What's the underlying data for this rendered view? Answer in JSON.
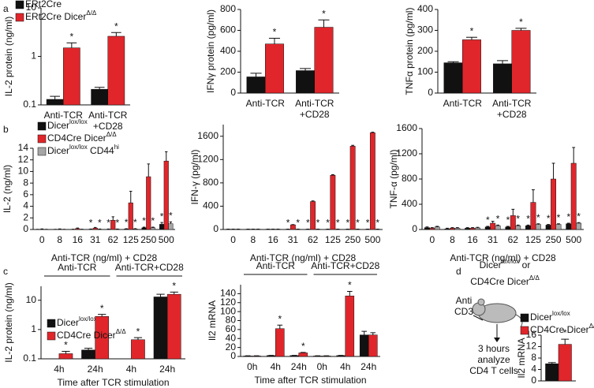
{
  "panels": [
    "a",
    "b",
    "c",
    "d"
  ],
  "diagram": {
    "title": [
      [
        "Dicer",
        "lox/lox",
        " or"
      ],
      [
        "CD4Cre Dicer",
        "Δ/Δ"
      ]
    ],
    "stimulus": [
      "Anti",
      "CD3"
    ],
    "readout": [
      "3 hours",
      "analyze",
      "CD4 T cells"
    ]
  },
  "chart_data": [
    {
      "type": "bar",
      "ylabel": "IL-2 protein (ng/ml)",
      "log": true,
      "ylim": [
        0.1,
        10
      ],
      "yticks": [
        0.1,
        1,
        10
      ],
      "categories": [
        [
          "Anti-TCR"
        ],
        [
          "Anti-TCR",
          "+CD28"
        ]
      ],
      "series": [
        {
          "name": [
            "ERt2Cre"
          ],
          "color": "#111111",
          "values": [
            0.13,
            0.21
          ],
          "errors": [
            0.02,
            0.02
          ]
        },
        {
          "name": [
            "ERt2Cre Dicer",
            "Δ/Δ"
          ],
          "color": "#e0262b",
          "values": [
            1.5,
            2.6
          ],
          "errors": [
            0.4,
            0.5
          ],
          "annotations": [
            "*",
            "*"
          ]
        }
      ]
    },
    {
      "type": "bar",
      "ylabel": "IFNγ protein (pg/ml)",
      "ylim": [
        0,
        800
      ],
      "yticks": [
        0,
        200,
        400,
        600,
        800
      ],
      "categories": [
        [
          "Anti-TCR"
        ],
        [
          "Anti-TCR",
          "+CD28"
        ]
      ],
      "series": [
        {
          "color": "#111111",
          "values": [
            155,
            215
          ],
          "errors": [
            35,
            20
          ]
        },
        {
          "color": "#e0262b",
          "values": [
            470,
            630
          ],
          "errors": [
            55,
            70
          ],
          "annotations": [
            "*",
            "*"
          ]
        }
      ]
    },
    {
      "type": "bar",
      "ylabel": "TNFα protein (pg/ml)",
      "ylim": [
        0,
        400
      ],
      "yticks": [
        0,
        100,
        200,
        300,
        400
      ],
      "categories": [
        [
          "Anti-TCR"
        ],
        [
          "Anti-TCR",
          "+CD28"
        ]
      ],
      "series": [
        {
          "color": "#111111",
          "values": [
            145,
            140
          ],
          "errors": [
            5,
            15
          ]
        },
        {
          "color": "#e0262b",
          "values": [
            255,
            300
          ],
          "errors": [
            12,
            10
          ],
          "annotations": [
            "*",
            "*"
          ]
        }
      ]
    },
    {
      "type": "bar",
      "ylabel": "IL-2 (ng/ml)",
      "xlabel": "Anti-TCR (ng/ml) + CD28",
      "ylim": [
        0,
        14
      ],
      "yticks": [
        0,
        2,
        4,
        6,
        8,
        10,
        12,
        14
      ],
      "categories": [
        "0",
        "8",
        "16",
        "31",
        "62",
        "125",
        "250",
        "500"
      ],
      "series": [
        {
          "name": [
            "Dicer",
            "lox/lox"
          ],
          "color": "#111111",
          "values": [
            0.02,
            0.02,
            0.03,
            0.05,
            0.05,
            0.08,
            0.3,
            0.9
          ],
          "errors": [
            0.02,
            0.02,
            0.02,
            0.03,
            0.03,
            0.05,
            0.1,
            0.3
          ],
          "annotations": [
            null,
            null,
            null,
            "*",
            "*",
            "*",
            "*",
            "*"
          ]
        },
        {
          "name": [
            "CD4Cre Dicer",
            "Δ/Δ"
          ],
          "color": "#e0262b",
          "values": [
            0.05,
            0.05,
            0.15,
            0.25,
            1.6,
            4.6,
            9.1,
            11.8
          ],
          "errors": [
            0.05,
            0.05,
            0.1,
            0.1,
            0.6,
            2,
            2.2,
            1.6
          ]
        },
        {
          "name": [
            "Dicer",
            "lox/lox",
            " CD44",
            "hi"
          ],
          "color": "#a6a6a6",
          "values": [
            0.02,
            0.02,
            0.03,
            0.05,
            0.05,
            0.1,
            0.3,
            1.0
          ],
          "errors": [
            0.02,
            0.02,
            0.02,
            0.03,
            0.03,
            0.05,
            0.1,
            0.3
          ],
          "annotations": [
            null,
            null,
            null,
            "*",
            "*",
            "*",
            "*",
            "*"
          ]
        }
      ]
    },
    {
      "type": "bar",
      "ylabel": "IFN-γ (pg/ml)",
      "xlabel": "Anti-TCR (ng/ml) + CD28",
      "ylim": [
        0,
        1800
      ],
      "yticks": [
        0,
        400,
        800,
        1200,
        1600
      ],
      "categories": [
        "0",
        "8",
        "16",
        "31",
        "62",
        "125",
        "250",
        "500"
      ],
      "series": [
        {
          "color": "#111111",
          "values": [
            5,
            5,
            5,
            5,
            5,
            5,
            5,
            5
          ],
          "errors": [
            2,
            2,
            2,
            2,
            2,
            2,
            2,
            2
          ],
          "annotations": [
            null,
            null,
            null,
            "*",
            "*",
            "*",
            "*",
            "*"
          ]
        },
        {
          "color": "#e0262b",
          "values": [
            5,
            5,
            5,
            80,
            480,
            930,
            1430,
            1660
          ],
          "errors": [
            2,
            2,
            2,
            5,
            10,
            10,
            15,
            10
          ]
        },
        {
          "color": "#a6a6a6",
          "values": [
            5,
            5,
            5,
            5,
            5,
            5,
            5,
            5
          ],
          "errors": [
            2,
            2,
            2,
            2,
            2,
            2,
            2,
            2
          ],
          "annotations": [
            null,
            null,
            null,
            "*",
            "*",
            "*",
            "*",
            "*"
          ]
        }
      ]
    },
    {
      "type": "bar",
      "ylabel": "TNF-α (pg/ml)",
      "xlabel": "Anti-TCR (ng/ml) + CD28",
      "ylim": [
        0,
        1600
      ],
      "yticks": [
        0,
        400,
        800,
        1200,
        1600
      ],
      "categories": [
        "0",
        "8",
        "16",
        "31",
        "62",
        "125",
        "250",
        "500"
      ],
      "series": [
        {
          "color": "#111111",
          "values": [
            30,
            10,
            20,
            40,
            40,
            60,
            70,
            90
          ],
          "errors": [
            10,
            10,
            10,
            10,
            10,
            10,
            10,
            10
          ],
          "annotations": [
            null,
            null,
            null,
            "*",
            "*",
            "*",
            "*",
            "*"
          ]
        },
        {
          "color": "#e0262b",
          "values": [
            20,
            20,
            20,
            100,
            220,
            430,
            800,
            1050
          ],
          "errors": [
            10,
            10,
            10,
            30,
            100,
            200,
            250,
            250
          ]
        },
        {
          "color": "#a6a6a6",
          "values": [
            40,
            20,
            25,
            60,
            60,
            80,
            80,
            100
          ],
          "errors": [
            10,
            10,
            10,
            10,
            10,
            10,
            10,
            10
          ],
          "annotations": [
            null,
            null,
            null,
            "*",
            "*",
            "*",
            "*",
            "*"
          ]
        }
      ]
    },
    {
      "type": "bar",
      "ylabel": "IL-2 protein (ng/ml)",
      "xlabel": "Time after TCR stimulation",
      "log": true,
      "ylim": [
        0.1,
        30
      ],
      "yticks": [
        0.1,
        1,
        10
      ],
      "groups": [
        {
          "label": "Anti-TCR",
          "categories": [
            "4h",
            "24h"
          ]
        },
        {
          "label": "Anti-TCR+CD28",
          "categories": [
            "4h",
            "24h"
          ]
        }
      ],
      "series": [
        {
          "name": [
            "Dicer",
            "lox/lox"
          ],
          "color": "#111111",
          "values": [
            null,
            0.2,
            null,
            13
          ],
          "errors": [
            null,
            0.03,
            null,
            3
          ]
        },
        {
          "name": [
            "CD4Cre Dicer",
            "Δ/Δ"
          ],
          "color": "#e0262b",
          "values": [
            0.15,
            2.8,
            0.45,
            16
          ],
          "errors": [
            0.03,
            0.5,
            0.08,
            3
          ],
          "annotations": [
            "*",
            "*",
            "*",
            "*"
          ]
        }
      ]
    },
    {
      "type": "bar",
      "ylabel": "Il2 mRNA",
      "xlabel": "Time after TCR stimulation",
      "ylim": [
        0,
        160
      ],
      "yticks": [
        0,
        20,
        40,
        60,
        80,
        100,
        120,
        140
      ],
      "groups": [
        {
          "label": "Anti-TCR",
          "categories": [
            "0h",
            "4h",
            "24h"
          ]
        },
        {
          "label": "Anti-TCR+CD28",
          "categories": [
            "0h",
            "4h",
            "24h"
          ]
        }
      ],
      "series": [
        {
          "color": "#111111",
          "values": [
            1,
            2,
            2,
            1,
            2,
            48
          ],
          "errors": [
            0.5,
            0.5,
            0.5,
            0.5,
            0.5,
            8
          ]
        },
        {
          "color": "#e0262b",
          "values": [
            1,
            62,
            8,
            1,
            135,
            48
          ],
          "errors": [
            0.5,
            8,
            1,
            0.5,
            10,
            5
          ],
          "annotations": [
            null,
            "*",
            "*",
            null,
            "*",
            null
          ]
        }
      ]
    },
    {
      "type": "bar",
      "ylabel": "Il2 mRNA",
      "ylim": [
        0,
        16
      ],
      "yticks": [
        0,
        4,
        8,
        12,
        16
      ],
      "categories": [
        null
      ],
      "series": [
        {
          "name": [
            "Dicer",
            "lox/lox"
          ],
          "color": "#111111",
          "values": [
            6
          ],
          "errors": [
            0.4
          ]
        },
        {
          "name": [
            "CD4Cre Dicer",
            "Δ/Δ"
          ],
          "color": "#e0262b",
          "values": [
            12.8
          ],
          "errors": [
            1.8
          ],
          "annotations": [
            "*"
          ]
        }
      ]
    }
  ]
}
